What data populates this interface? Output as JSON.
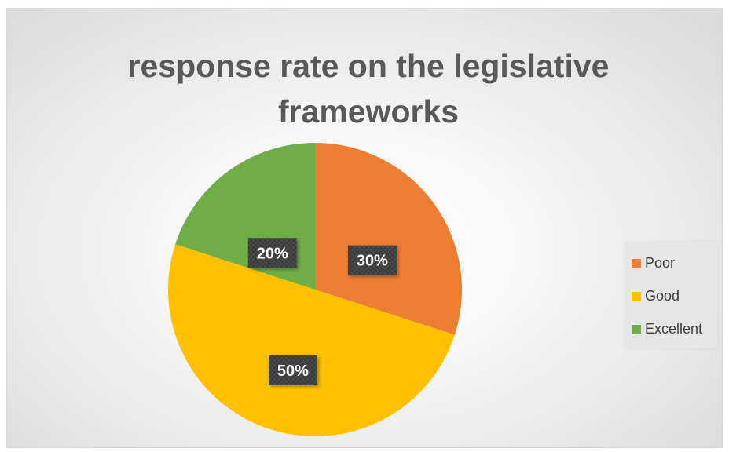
{
  "chart_data": {
    "type": "pie",
    "title": "response rate on the legislative frameworks",
    "categories": [
      "Poor",
      "Good",
      "Excellent"
    ],
    "values": [
      30,
      50,
      20
    ],
    "data_labels": [
      "30%",
      "50%",
      "20%"
    ],
    "colors": [
      "#ed7d31",
      "#ffc000",
      "#70ad47"
    ],
    "legend_position": "right",
    "start_angle_degrees": 0,
    "direction": "clockwise"
  }
}
